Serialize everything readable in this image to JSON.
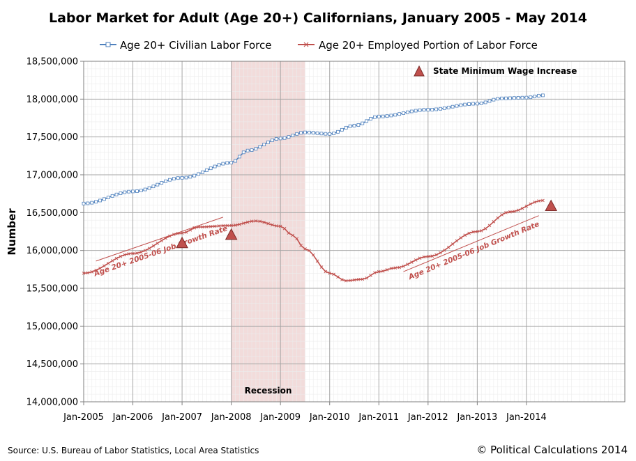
{
  "chart_data": {
    "type": "line",
    "title": "Labor Market for Adult (Age 20+) Californians, January 2005 - May 2014",
    "ylabel": "Number",
    "xlabel": "",
    "ylim": [
      14000000,
      18500000
    ],
    "y_ticks": [
      14000000,
      14500000,
      15000000,
      15500000,
      16000000,
      16500000,
      17000000,
      17500000,
      18000000,
      18500000
    ],
    "y_tick_labels": [
      "14,000,000",
      "14,500,000",
      "15,000,000",
      "15,500,000",
      "16,000,000",
      "16,500,000",
      "17,000,000",
      "17,500,000",
      "18,000,000",
      "18,500,000"
    ],
    "x_start": "2005-01",
    "x_months_total": 132,
    "x_tick_labels": [
      "Jan-2005",
      "Jan-2006",
      "Jan-2007",
      "Jan-2008",
      "Jan-2009",
      "Jan-2010",
      "Jan-2011",
      "Jan-2012",
      "Jan-2013",
      "Jan-2014"
    ],
    "series": [
      {
        "name": "Age 20+ Civilian Labor Force",
        "color": "#4f81bd",
        "marker": "square",
        "anchors": [
          [
            0,
            16620000
          ],
          [
            12,
            16780000
          ],
          [
            24,
            16960000
          ],
          [
            36,
            17160000
          ],
          [
            40,
            17320000
          ],
          [
            48,
            17480000
          ],
          [
            54,
            17560000
          ],
          [
            60,
            17540000
          ],
          [
            66,
            17650000
          ],
          [
            72,
            17770000
          ],
          [
            84,
            17860000
          ],
          [
            96,
            17940000
          ],
          [
            102,
            18010000
          ],
          [
            108,
            18020000
          ],
          [
            112,
            18050000
          ]
        ]
      },
      {
        "name": "Age 20+ Employed Portion of Labor Force",
        "color": "#c0504d",
        "marker": "x",
        "anchors": [
          [
            0,
            15700000
          ],
          [
            12,
            15960000
          ],
          [
            24,
            16230000
          ],
          [
            28,
            16310000
          ],
          [
            36,
            16330000
          ],
          [
            42,
            16390000
          ],
          [
            48,
            16320000
          ],
          [
            51,
            16200000
          ],
          [
            54,
            16020000
          ],
          [
            60,
            15700000
          ],
          [
            64,
            15600000
          ],
          [
            68,
            15620000
          ],
          [
            72,
            15720000
          ],
          [
            76,
            15770000
          ],
          [
            84,
            15920000
          ],
          [
            96,
            16250000
          ],
          [
            104,
            16510000
          ],
          [
            112,
            16660000
          ]
        ]
      }
    ],
    "shaded_region": {
      "label": "Recession",
      "start_month": 36,
      "end_month": 54,
      "color": "#f2dcdb"
    },
    "markers": [
      {
        "name": "State Minimum Wage Increase",
        "month": 24,
        "value": 16100000
      },
      {
        "name": "State Minimum Wage Increase",
        "month": 36,
        "value": 16210000
      },
      {
        "name": "State Minimum Wage Increase",
        "month": 114,
        "value": 16590000
      }
    ],
    "marker_legend": "State Minimum Wage Increase",
    "trend_lines": [
      {
        "label": "Age 20+ 2005-06 Job Growth Rate",
        "from": [
          3,
          15860000
        ],
        "to": [
          34,
          16440000
        ]
      },
      {
        "label": "Age 20+ 2005-06 Job Growth Rate",
        "from": [
          78,
          15720000
        ],
        "to": [
          111,
          16460000
        ]
      }
    ],
    "legend_position": "top"
  },
  "footer": {
    "source": "Source: U.S. Bureau of Labor Statistics, Local Area Statistics",
    "credit": "© Political Calculations 2014"
  }
}
